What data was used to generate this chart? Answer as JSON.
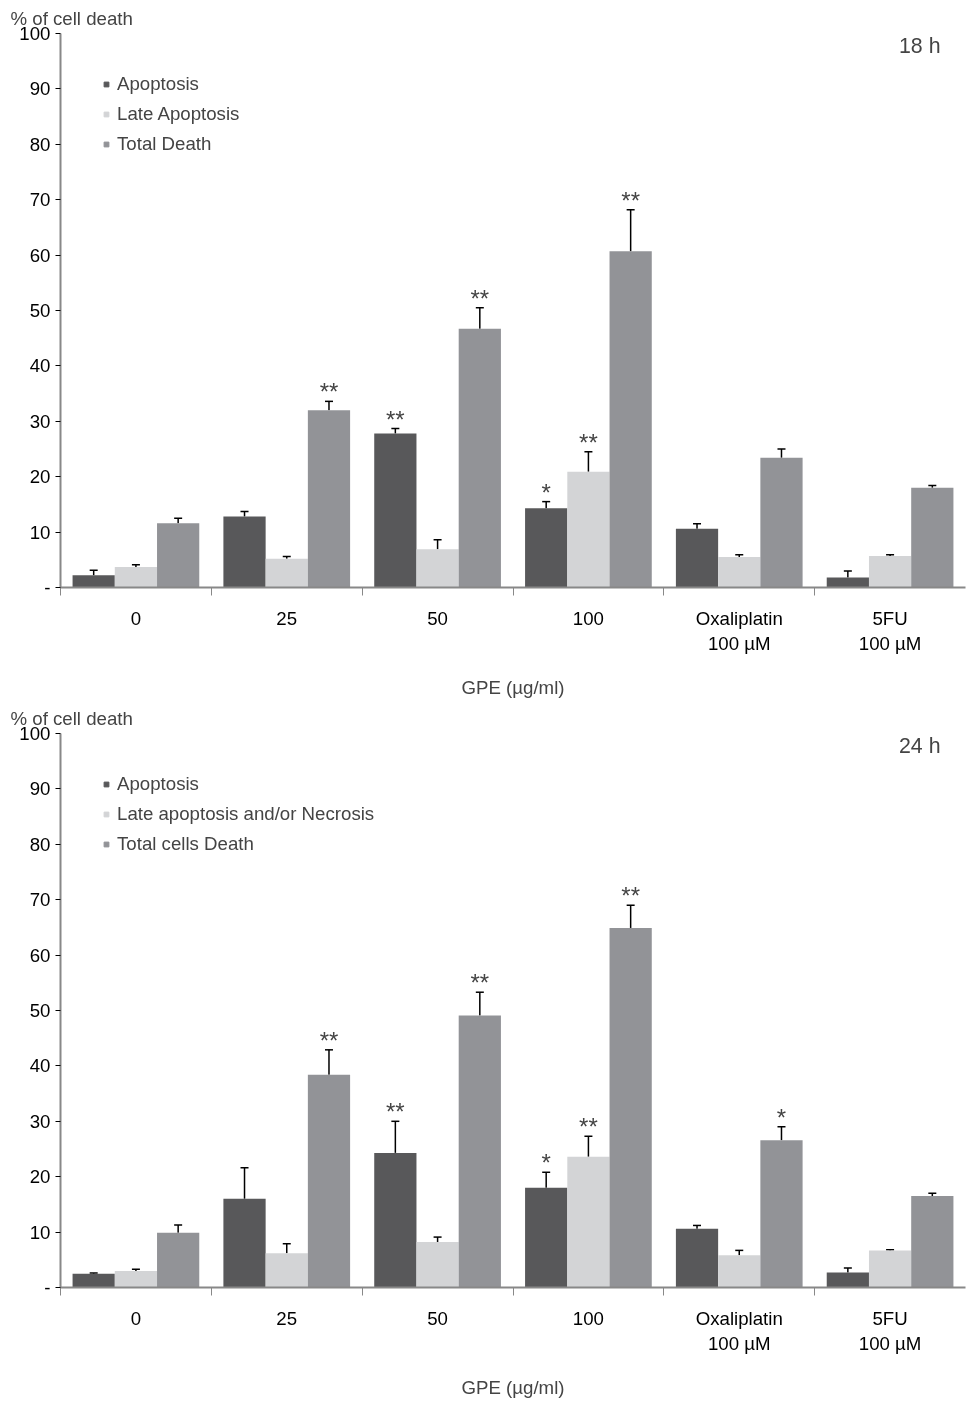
{
  "chart_data": [
    {
      "type": "bar",
      "title": "18 h",
      "xlabel": "GPE (µg/ml)",
      "ylabel": "% of cell death",
      "categories": [
        "0",
        "25",
        "50",
        "100",
        "Oxaliplatin\n100 µM",
        "5FU\n100 µM"
      ],
      "series": [
        {
          "name": "Apoptosis",
          "color": "#58585a",
          "values": [
            2.2,
            12.8,
            27.8,
            14.3,
            10.6,
            1.8
          ],
          "errors": [
            [
              2.2,
              3.1
            ],
            [
              12.8,
              13.7
            ],
            [
              27.8,
              28.7
            ],
            [
              14.3,
              15.5
            ],
            [
              10.6,
              11.5
            ],
            [
              1.8,
              3.0
            ]
          ],
          "value_labels": [
            null,
            null,
            "**",
            "*",
            null,
            null
          ]
        },
        {
          "name": "Late Apoptosis",
          "color": "#d3d4d6",
          "values": [
            3.7,
            5.2,
            6.9,
            20.9,
            5.5,
            5.7
          ],
          "errors": [
            [
              3.7,
              4.1
            ],
            [
              5.2,
              5.6
            ],
            [
              6.9,
              8.6
            ],
            [
              20.9,
              24.5
            ],
            [
              5.5,
              5.9
            ],
            [
              5.7,
              5.9
            ]
          ],
          "value_labels": [
            null,
            null,
            null,
            "**",
            null,
            null
          ]
        },
        {
          "name": "Total Death",
          "color": "#929397",
          "values": [
            11.6,
            32.0,
            46.7,
            60.7,
            23.4,
            18.0
          ],
          "errors": [
            [
              11.6,
              12.5
            ],
            [
              32.0,
              33.6
            ],
            [
              46.7,
              50.5
            ],
            [
              60.7,
              68.2
            ],
            [
              23.4,
              25.0
            ],
            [
              18.0,
              18.4
            ]
          ],
          "value_labels": [
            null,
            "**",
            "**",
            "**",
            null,
            null
          ]
        }
      ],
      "ylim": [
        0,
        100
      ],
      "yticks": [
        {
          "value": 0,
          "label": "-"
        },
        10,
        20,
        30,
        40,
        50,
        60,
        70,
        80,
        90,
        100
      ],
      "legend": "top left",
      "marker": "square"
    },
    {
      "type": "bar",
      "title": "24 h",
      "xlabel": "GPE (µg/ml)",
      "ylabel": "% of cell death",
      "categories": [
        "0",
        "25",
        "50",
        "100",
        "Oxaliplatin\n100 µM",
        "5FU\n100 µM"
      ],
      "series": [
        {
          "name": "Apoptosis",
          "color": "#58585a",
          "values": [
            2.5,
            16.0,
            24.3,
            18.0,
            10.6,
            2.7
          ],
          "errors": [
            [
              2.5,
              2.6
            ],
            [
              16.0,
              21.6
            ],
            [
              24.3,
              30.0
            ],
            [
              18.0,
              20.8
            ],
            [
              10.6,
              11.2
            ],
            [
              2.7,
              3.5
            ]
          ],
          "value_labels": [
            null,
            null,
            "**",
            "*",
            null,
            null
          ]
        },
        {
          "name": "Late apoptosis and/or Necrosis",
          "color": "#d3d4d6",
          "values": [
            3.0,
            6.2,
            8.2,
            23.6,
            5.8,
            6.7
          ],
          "errors": [
            [
              3.0,
              3.3
            ],
            [
              6.2,
              7.9
            ],
            [
              8.2,
              9.1
            ],
            [
              23.6,
              27.3
            ],
            [
              5.8,
              6.7
            ],
            [
              6.7,
              6.8
            ]
          ],
          "value_labels": [
            null,
            null,
            null,
            "**",
            null,
            null
          ]
        },
        {
          "name": "Total cells Death",
          "color": "#929397",
          "values": [
            9.9,
            38.4,
            49.1,
            64.9,
            26.6,
            16.5
          ],
          "errors": [
            [
              9.9,
              11.3
            ],
            [
              38.4,
              42.9
            ],
            [
              49.1,
              53.3
            ],
            [
              64.9,
              69.0
            ],
            [
              26.6,
              29.0
            ],
            [
              16.5,
              17.0
            ]
          ],
          "value_labels": [
            null,
            "**",
            "**",
            "**",
            "*",
            null
          ]
        }
      ],
      "ylim": [
        0,
        100
      ],
      "yticks": [
        {
          "value": 0,
          "label": "-"
        },
        10,
        20,
        30,
        40,
        50,
        60,
        70,
        80,
        90,
        100
      ],
      "legend": "top left",
      "marker": "square"
    }
  ]
}
